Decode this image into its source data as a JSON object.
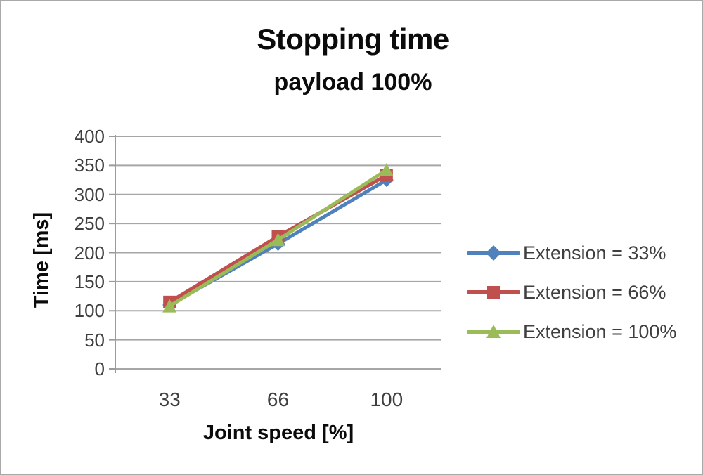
{
  "chart_data": {
    "type": "line",
    "title": "Stopping time",
    "subtitle": "payload 100%",
    "xlabel": "Joint speed [%]",
    "ylabel": "Time [ms]",
    "categories": [
      "33",
      "66",
      "100"
    ],
    "series": [
      {
        "name": "Extension = 33%",
        "values": [
          110,
          215,
          325
        ],
        "color": "#4F81BD",
        "marker": "diamond"
      },
      {
        "name": "Extension = 66%",
        "values": [
          115,
          228,
          333
        ],
        "color": "#C0504D",
        "marker": "square"
      },
      {
        "name": "Extension = 100%",
        "values": [
          108,
          222,
          342
        ],
        "color": "#9BBB59",
        "marker": "triangle"
      }
    ],
    "ylim": [
      0,
      400
    ],
    "ytick_step": 50,
    "yticks": [
      "400",
      "350",
      "300",
      "250",
      "200",
      "150",
      "100",
      "50",
      "0"
    ],
    "grid": true,
    "legend_position": "right",
    "gridline_color": "#A6A6A6",
    "axis_color": "#9B9B9B",
    "tick_label_color": "#3f3f3f",
    "title_color": "#0b0b0b",
    "background": "#ffffff"
  }
}
